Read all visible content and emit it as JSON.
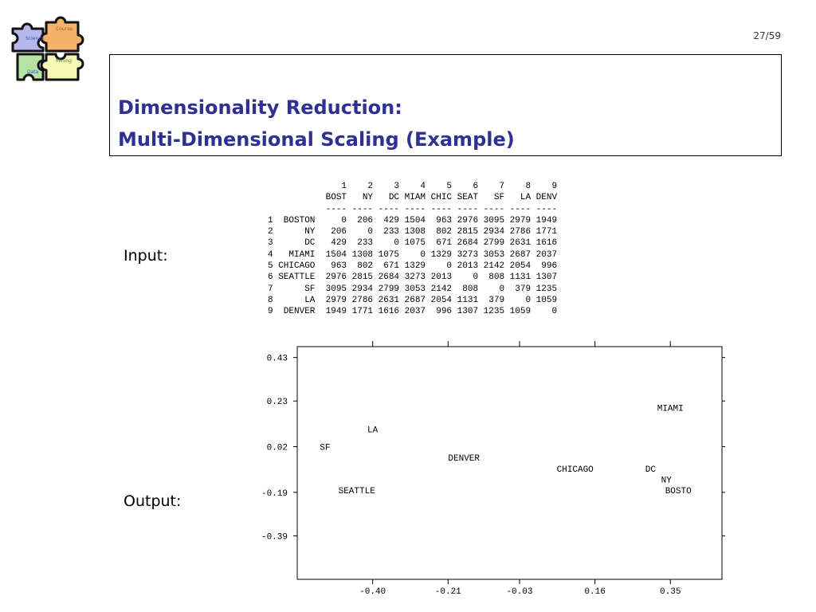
{
  "logo": {
    "pieces": [
      {
        "label": "Science",
        "color": "#b7b7f0"
      },
      {
        "label": "Course",
        "color": "#f6b26b"
      },
      {
        "label": "Mining",
        "color": "#f7f7b5"
      },
      {
        "label": "Data",
        "color": "#b6e3a4"
      }
    ]
  },
  "page_number": "27/59",
  "title": {
    "line1": "Dimensionality Reduction:",
    "line2": "Multi-Dimensional Scaling (Example)"
  },
  "input_label": "Input:",
  "output_label": "Output:",
  "distance_table": {
    "column_numbers": [
      "1",
      "2",
      "3",
      "4",
      "5",
      "6",
      "7",
      "8",
      "9"
    ],
    "column_codes": [
      "BOST",
      "NY",
      "DC",
      "MIAM",
      "CHIC",
      "SEAT",
      "SF",
      "LA",
      "DENV"
    ],
    "separator": "----",
    "rows": [
      {
        "index": "1",
        "name": "BOSTON",
        "values": [
          0,
          206,
          429,
          1504,
          963,
          2976,
          3095,
          2979,
          1949
        ]
      },
      {
        "index": "2",
        "name": "NY",
        "values": [
          206,
          0,
          233,
          1308,
          802,
          2815,
          2934,
          2786,
          1771
        ]
      },
      {
        "index": "3",
        "name": "DC",
        "values": [
          429,
          233,
          0,
          1075,
          671,
          2684,
          2799,
          2631,
          1616
        ]
      },
      {
        "index": "4",
        "name": "MIAMI",
        "values": [
          1504,
          1308,
          1075,
          0,
          1329,
          3273,
          3053,
          2687,
          2037
        ]
      },
      {
        "index": "5",
        "name": "CHICAGO",
        "values": [
          963,
          802,
          671,
          1329,
          0,
          2013,
          2142,
          2054,
          996
        ]
      },
      {
        "index": "6",
        "name": "SEATTLE",
        "values": [
          2976,
          2815,
          2684,
          3273,
          2013,
          0,
          808,
          1131,
          1307
        ]
      },
      {
        "index": "7",
        "name": "SF",
        "values": [
          3095,
          2934,
          2799,
          3053,
          2142,
          808,
          0,
          379,
          1235
        ]
      },
      {
        "index": "8",
        "name": "LA",
        "values": [
          2979,
          2786,
          2631,
          2687,
          2054,
          1131,
          379,
          0,
          1059
        ]
      },
      {
        "index": "9",
        "name": "DENVER",
        "values": [
          1949,
          1771,
          1616,
          2037,
          996,
          1307,
          1235,
          1059,
          0
        ]
      }
    ]
  },
  "chart_data": {
    "type": "scatter",
    "title": "",
    "xlabel": "",
    "ylabel": "",
    "x_ticks": [
      "-0.40",
      "-0.21",
      "-0.03",
      "0.16",
      "0.35"
    ],
    "y_ticks": [
      "0.43",
      "0.23",
      "0.02",
      "-0.19",
      "-0.39"
    ],
    "xlim": [
      -0.59,
      0.48
    ],
    "ylim": [
      -0.59,
      0.48
    ],
    "grid": false,
    "points": [
      {
        "label": "MIAMI",
        "x": 0.35,
        "y": 0.2
      },
      {
        "label": "LA",
        "x": -0.4,
        "y": 0.1
      },
      {
        "label": "SF",
        "x": -0.52,
        "y": 0.02
      },
      {
        "label": "DENVER",
        "x": -0.17,
        "y": -0.03
      },
      {
        "label": "CHICAGO",
        "x": 0.11,
        "y": -0.08
      },
      {
        "label": "DC",
        "x": 0.3,
        "y": -0.08
      },
      {
        "label": "NY",
        "x": 0.34,
        "y": -0.13
      },
      {
        "label": "SEATTLE",
        "x": -0.44,
        "y": -0.18
      },
      {
        "label": "BOSTO",
        "x": 0.37,
        "y": -0.18
      }
    ]
  }
}
